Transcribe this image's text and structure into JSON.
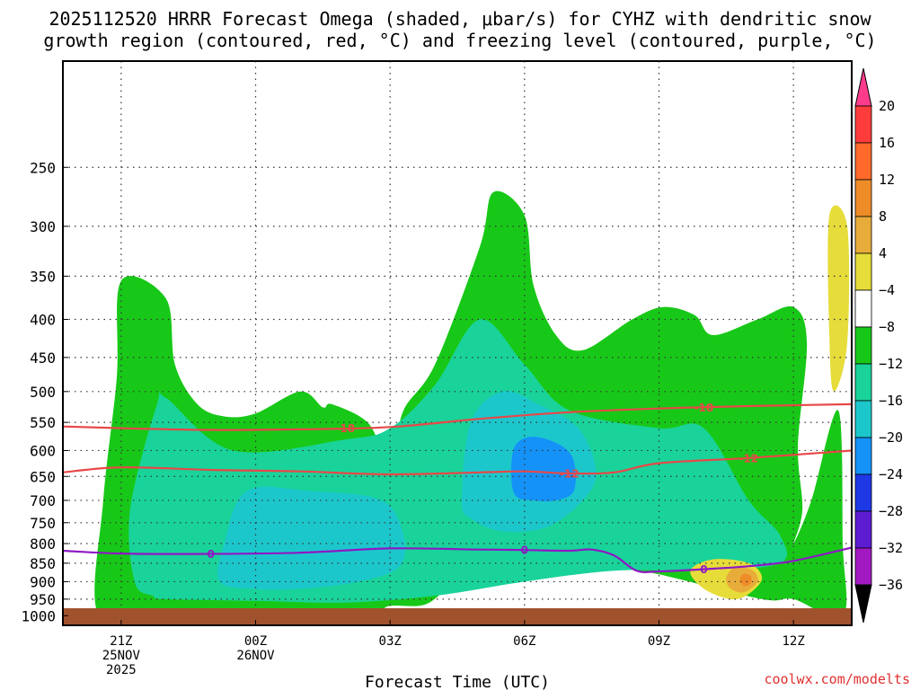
{
  "title_line1": "2025112520 HRRR Forecast Omega (shaded, μbar/s) for CYHZ with dendritic snow",
  "title_line2": "growth region (contoured, red, °C) and freezing level (contoured, purple, °C)",
  "credit": "coolwx.com/modelts",
  "chart_data": {
    "type": "contour",
    "title": "2025112520 HRRR Forecast Omega (shaded, μbar/s) for CYHZ with dendritic snow growth region (contoured, red, °C) and freezing level (contoured, purple, °C)",
    "xlabel": "Forecast Time (UTC)",
    "ylabel": "",
    "xlim": [
      -1.3,
      16.3
    ],
    "ylim": [
      1030,
      180
    ],
    "y_scale": "log-pressure",
    "grid": true,
    "x_ticks": [
      {
        "value": 0,
        "lines": [
          "21Z",
          "25NOV",
          "2025"
        ]
      },
      {
        "value": 3,
        "lines": [
          "00Z",
          "26NOV"
        ]
      },
      {
        "value": 6,
        "lines": [
          "03Z"
        ]
      },
      {
        "value": 9,
        "lines": [
          "06Z"
        ]
      },
      {
        "value": 12,
        "lines": [
          "09Z"
        ]
      },
      {
        "value": 15,
        "lines": [
          "12Z"
        ]
      }
    ],
    "y_ticks": [
      250,
      300,
      350,
      400,
      450,
      500,
      550,
      600,
      650,
      700,
      750,
      800,
      850,
      900,
      950,
      1000
    ],
    "colorbar": {
      "labels": [
        "20",
        "16",
        "12",
        "8",
        "4",
        "−4",
        "−8",
        "−12",
        "−16",
        "−20",
        "−24",
        "−28",
        "−32",
        "−36"
      ],
      "colors": [
        "#ff3c8c",
        "#ff3c3c",
        "#ff6a2a",
        "#ee8c28",
        "#e8ac3a",
        "#e6dc3a",
        "#ffffff",
        "#18c818",
        "#19d39a",
        "#1cc7cc",
        "#1492f8",
        "#1e38e6",
        "#5e1cd2",
        "#a218c2",
        "#a8a8a8",
        "#000000"
      ]
    },
    "shaded_regions": [
      {
        "level": "-8 to -4",
        "color": "#18c818",
        "outline": [
          [
            -0.5,
            1000
          ],
          [
            -0.4,
            700
          ],
          [
            -0.1,
            480
          ],
          [
            0,
            355
          ],
          [
            1,
            375
          ],
          [
            1.2,
            460
          ],
          [
            1.7,
            520
          ],
          [
            2.3,
            540
          ],
          [
            3,
            535
          ],
          [
            4,
            500
          ],
          [
            4.5,
            525
          ],
          [
            4.7,
            520
          ],
          [
            5.5,
            550
          ],
          [
            6,
            620
          ],
          [
            6.3,
            530
          ],
          [
            7,
            460
          ],
          [
            8,
            320
          ],
          [
            8.3,
            270
          ],
          [
            9,
            290
          ],
          [
            9.2,
            360
          ],
          [
            9.7,
            420
          ],
          [
            10.3,
            440
          ],
          [
            11.4,
            400
          ],
          [
            12.1,
            385
          ],
          [
            12.8,
            395
          ],
          [
            13.2,
            420
          ],
          [
            14.2,
            400
          ],
          [
            15,
            385
          ],
          [
            15.3,
            430
          ],
          [
            15.1,
            590
          ],
          [
            15.2,
            720
          ],
          [
            15,
            800
          ],
          [
            15.4,
            700
          ],
          [
            16,
            530
          ],
          [
            16.1,
            800
          ],
          [
            16.1,
            1000
          ],
          [
            15,
            950
          ],
          [
            14.3,
            950
          ],
          [
            12,
            880
          ],
          [
            11,
            860
          ],
          [
            10.5,
            848
          ],
          [
            9.5,
            852
          ],
          [
            8.5,
            870
          ],
          [
            7.5,
            900
          ],
          [
            6.8,
            965
          ],
          [
            6,
            970
          ],
          [
            5.5,
            990
          ],
          [
            3,
            1000
          ],
          [
            1,
            1000
          ]
        ]
      },
      {
        "level": "-12 to -8",
        "color": "#19d39a",
        "outline": [
          [
            0.7,
            940
          ],
          [
            0.3,
            900
          ],
          [
            0.2,
            720
          ],
          [
            0.8,
            520
          ],
          [
            1,
            510
          ],
          [
            2.5,
            600
          ],
          [
            5,
            580
          ],
          [
            6,
            560
          ],
          [
            7,
            490
          ],
          [
            8,
            400
          ],
          [
            9,
            460
          ],
          [
            10,
            530
          ],
          [
            12,
            560
          ],
          [
            13,
            560
          ],
          [
            14,
            700
          ],
          [
            14.7,
            780
          ],
          [
            14.7,
            850
          ],
          [
            13,
            870
          ],
          [
            11,
            870
          ],
          [
            9,
            900
          ],
          [
            7,
            940
          ],
          [
            5,
            960
          ],
          [
            3,
            955
          ],
          [
            1,
            950
          ]
        ]
      },
      {
        "level": "-16 to -12",
        "color": "#1cc7cc",
        "outline": [
          [
            2.2,
            900
          ],
          [
            2.3,
            800
          ],
          [
            2.8,
            680
          ],
          [
            4.2,
            680
          ],
          [
            5.8,
            700
          ],
          [
            6.3,
            780
          ],
          [
            6.2,
            860
          ],
          [
            5.3,
            900
          ],
          [
            4,
            920
          ],
          [
            3,
            920
          ]
        ]
      },
      {
        "level": "-16 to -12",
        "color": "#1cc7cc",
        "outline": [
          [
            7.6,
            700
          ],
          [
            7.8,
            550
          ],
          [
            8.5,
            500
          ],
          [
            9.3,
            520
          ],
          [
            10.2,
            560
          ],
          [
            10.6,
            640
          ],
          [
            10.3,
            700
          ],
          [
            9.5,
            760
          ],
          [
            8.5,
            770
          ],
          [
            7.8,
            740
          ]
        ]
      },
      {
        "level": "-20 to -16",
        "color": "#1492f8",
        "outline": [
          [
            8.7,
            640
          ],
          [
            8.8,
            590
          ],
          [
            9.2,
            575
          ],
          [
            9.8,
            590
          ],
          [
            10.1,
            620
          ],
          [
            10.1,
            680
          ],
          [
            9.7,
            700
          ],
          [
            9.2,
            700
          ],
          [
            8.8,
            690
          ]
        ]
      },
      {
        "level": "4 to 8",
        "color": "#e6dc3a",
        "outline": [
          [
            15.9,
            500
          ],
          [
            15.8,
            420
          ],
          [
            15.8,
            290
          ],
          [
            16.2,
            300
          ],
          [
            16.2,
            430
          ]
        ]
      },
      {
        "level": "4 to 8",
        "color": "#e6dc3a",
        "outline": [
          [
            12.7,
            870
          ],
          [
            13.2,
            840
          ],
          [
            14,
            850
          ],
          [
            14.3,
            890
          ],
          [
            14,
            935
          ],
          [
            13.6,
            950
          ],
          [
            13,
            920
          ]
        ]
      },
      {
        "level": "8 to 12",
        "color": "#e8ac3a",
        "outline": [
          [
            13.5,
            890
          ],
          [
            13.7,
            860
          ],
          [
            14.1,
            870
          ],
          [
            14.2,
            900
          ],
          [
            13.9,
            930
          ],
          [
            13.6,
            920
          ]
        ]
      },
      {
        "level": "12 to 16",
        "color": "#ee8c28",
        "outline": [
          [
            13.8,
            895
          ],
          [
            13.9,
            878
          ],
          [
            14.05,
            885
          ],
          [
            14.05,
            905
          ],
          [
            13.9,
            912
          ]
        ]
      }
    ],
    "contours": [
      {
        "name": "-18",
        "color": "#e84848",
        "label_x": [
          5.0,
          13.0
        ],
        "x": [
          -1.3,
          0,
          2,
          4,
          6,
          8,
          10,
          12,
          14,
          16.3
        ],
        "y": [
          557,
          560,
          563,
          562,
          558,
          544,
          533,
          527,
          523,
          520
        ]
      },
      {
        "name": "-12",
        "color": "#e84848",
        "label_x": [
          10.0,
          14.0
        ],
        "x": [
          -1.3,
          0,
          2,
          4,
          6,
          8,
          9,
          10,
          11,
          12,
          14,
          16.3
        ],
        "y": [
          642,
          632,
          637,
          640,
          646,
          642,
          640,
          644,
          642,
          624,
          614,
          600
        ]
      },
      {
        "name": "0",
        "color": "#8e18c4",
        "label_x": [
          2.0,
          9.0,
          13.0
        ],
        "x": [
          -1.3,
          0,
          2,
          4,
          6,
          8,
          9,
          10,
          10.5,
          11,
          11.5,
          12,
          13,
          14,
          15,
          16.3
        ],
        "y": [
          818,
          825,
          826,
          823,
          812,
          815,
          816,
          818,
          815,
          830,
          870,
          872,
          866,
          858,
          844,
          810
        ]
      }
    ]
  }
}
